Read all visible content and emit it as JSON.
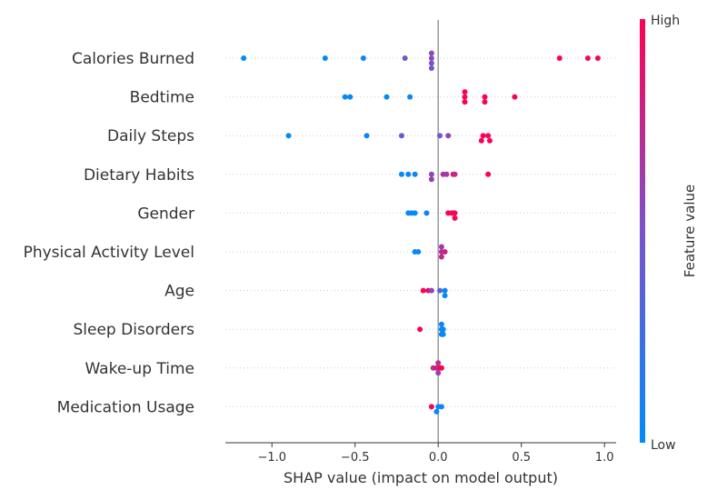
{
  "chart_data": {
    "type": "scatter",
    "xlabel": "SHAP value (impact on model output)",
    "xlim": [
      -1.28,
      1.07
    ],
    "xticks": [
      -1.0,
      -0.5,
      0.0,
      0.5,
      1.0
    ],
    "xtick_labels": [
      "−1.0",
      "−0.5",
      "0.0",
      "0.5",
      "1.0"
    ],
    "zero_line": 0.0,
    "colorbar": {
      "title": "Feature value",
      "high_label": "High",
      "low_label": "Low",
      "low_color": "#008bfb",
      "high_color": "#ff0052"
    },
    "features": [
      {
        "name": "Calories Burned",
        "points": [
          {
            "x": -1.17,
            "v": 0.0,
            "o": 0
          },
          {
            "x": -0.68,
            "v": 0.0,
            "o": 0
          },
          {
            "x": -0.45,
            "v": 0.08,
            "o": 0
          },
          {
            "x": -0.2,
            "v": 0.45,
            "o": 0
          },
          {
            "x": -0.04,
            "v": 0.48,
            "o": 2
          },
          {
            "x": -0.04,
            "v": 0.5,
            "o": 1
          },
          {
            "x": -0.04,
            "v": 0.55,
            "o": 0
          },
          {
            "x": -0.04,
            "v": 0.52,
            "o": -1
          },
          {
            "x": 0.73,
            "v": 1.0,
            "o": 0
          },
          {
            "x": 0.9,
            "v": 0.95,
            "o": 0
          },
          {
            "x": 0.96,
            "v": 1.0,
            "o": 0
          }
        ]
      },
      {
        "name": "Bedtime",
        "points": [
          {
            "x": -0.56,
            "v": 0.0,
            "o": 0
          },
          {
            "x": -0.53,
            "v": 0.05,
            "o": 0
          },
          {
            "x": -0.31,
            "v": 0.0,
            "o": 0
          },
          {
            "x": -0.17,
            "v": 0.05,
            "o": 0
          },
          {
            "x": 0.16,
            "v": 1.0,
            "o": 1
          },
          {
            "x": 0.16,
            "v": 0.95,
            "o": 0
          },
          {
            "x": 0.16,
            "v": 1.0,
            "o": -1
          },
          {
            "x": 0.28,
            "v": 0.95,
            "o": 1
          },
          {
            "x": 0.28,
            "v": 1.0,
            "o": 0
          },
          {
            "x": 0.46,
            "v": 1.0,
            "o": 0
          }
        ]
      },
      {
        "name": "Daily Steps",
        "points": [
          {
            "x": -0.9,
            "v": 0.0,
            "o": 0
          },
          {
            "x": -0.43,
            "v": 0.05,
            "o": 0
          },
          {
            "x": -0.22,
            "v": 0.4,
            "o": 0
          },
          {
            "x": 0.01,
            "v": 0.45,
            "o": 0
          },
          {
            "x": 0.06,
            "v": 0.6,
            "o": 0
          },
          {
            "x": 0.26,
            "v": 1.0,
            "o": 1
          },
          {
            "x": 0.27,
            "v": 1.0,
            "o": 0
          },
          {
            "x": 0.3,
            "v": 0.95,
            "o": 0
          },
          {
            "x": 0.31,
            "v": 1.0,
            "o": 1
          }
        ]
      },
      {
        "name": "Dietary Habits",
        "points": [
          {
            "x": -0.22,
            "v": 0.0,
            "o": 0
          },
          {
            "x": -0.18,
            "v": 0.05,
            "o": 0
          },
          {
            "x": -0.14,
            "v": 0.08,
            "o": 0
          },
          {
            "x": -0.04,
            "v": 0.6,
            "o": 1
          },
          {
            "x": -0.04,
            "v": 0.55,
            "o": 0
          },
          {
            "x": 0.03,
            "v": 0.7,
            "o": 0
          },
          {
            "x": 0.05,
            "v": 0.65,
            "o": 0
          },
          {
            "x": 0.09,
            "v": 0.95,
            "o": 0
          },
          {
            "x": 0.1,
            "v": 0.75,
            "o": 0
          },
          {
            "x": 0.3,
            "v": 1.0,
            "o": 0
          }
        ]
      },
      {
        "name": "Gender",
        "points": [
          {
            "x": -0.18,
            "v": 0.0,
            "o": 0
          },
          {
            "x": -0.16,
            "v": 0.05,
            "o": 0
          },
          {
            "x": -0.14,
            "v": 0.0,
            "o": 0
          },
          {
            "x": -0.07,
            "v": 0.05,
            "o": 0
          },
          {
            "x": 0.06,
            "v": 1.0,
            "o": 0
          },
          {
            "x": 0.08,
            "v": 0.95,
            "o": 0
          },
          {
            "x": 0.09,
            "v": 1.0,
            "o": 0
          },
          {
            "x": 0.1,
            "v": 1.0,
            "o": 1
          },
          {
            "x": 0.1,
            "v": 0.95,
            "o": 0
          }
        ]
      },
      {
        "name": "Physical Activity Level",
        "points": [
          {
            "x": -0.14,
            "v": 0.0,
            "o": 0
          },
          {
            "x": -0.12,
            "v": 0.05,
            "o": 0
          },
          {
            "x": 0.02,
            "v": 0.75,
            "o": 1
          },
          {
            "x": 0.02,
            "v": 0.7,
            "o": 0
          },
          {
            "x": 0.02,
            "v": 0.65,
            "o": -1
          },
          {
            "x": 0.04,
            "v": 0.8,
            "o": 0
          }
        ]
      },
      {
        "name": "Age",
        "points": [
          {
            "x": -0.09,
            "v": 1.0,
            "o": 0
          },
          {
            "x": -0.06,
            "v": 0.9,
            "o": 0
          },
          {
            "x": -0.04,
            "v": 0.6,
            "o": 0
          },
          {
            "x": 0.01,
            "v": 0.35,
            "o": 0
          },
          {
            "x": 0.04,
            "v": 0.0,
            "o": 1
          },
          {
            "x": 0.04,
            "v": 0.05,
            "o": 0
          }
        ]
      },
      {
        "name": "Sleep Disorders",
        "points": [
          {
            "x": -0.11,
            "v": 1.0,
            "o": 0
          },
          {
            "x": 0.02,
            "v": 0.0,
            "o": 1
          },
          {
            "x": 0.03,
            "v": 0.05,
            "o": 1
          },
          {
            "x": 0.02,
            "v": 0.0,
            "o": 0
          },
          {
            "x": 0.03,
            "v": 0.0,
            "o": 0
          },
          {
            "x": 0.02,
            "v": 0.05,
            "o": -1
          }
        ]
      },
      {
        "name": "Wake-up Time",
        "points": [
          {
            "x": -0.03,
            "v": 0.7,
            "o": 0
          },
          {
            "x": -0.01,
            "v": 0.85,
            "o": 0
          },
          {
            "x": 0.0,
            "v": 0.6,
            "o": 1
          },
          {
            "x": 0.01,
            "v": 0.9,
            "o": 0
          },
          {
            "x": 0.02,
            "v": 1.0,
            "o": 0
          },
          {
            "x": 0.0,
            "v": 0.7,
            "o": -1
          }
        ]
      },
      {
        "name": "Medication Usage",
        "points": [
          {
            "x": -0.04,
            "v": 1.0,
            "o": 0
          },
          {
            "x": -0.01,
            "v": 0.05,
            "o": 1
          },
          {
            "x": 0.0,
            "v": 0.0,
            "o": 0
          },
          {
            "x": 0.02,
            "v": 0.05,
            "o": 0
          }
        ]
      }
    ]
  }
}
